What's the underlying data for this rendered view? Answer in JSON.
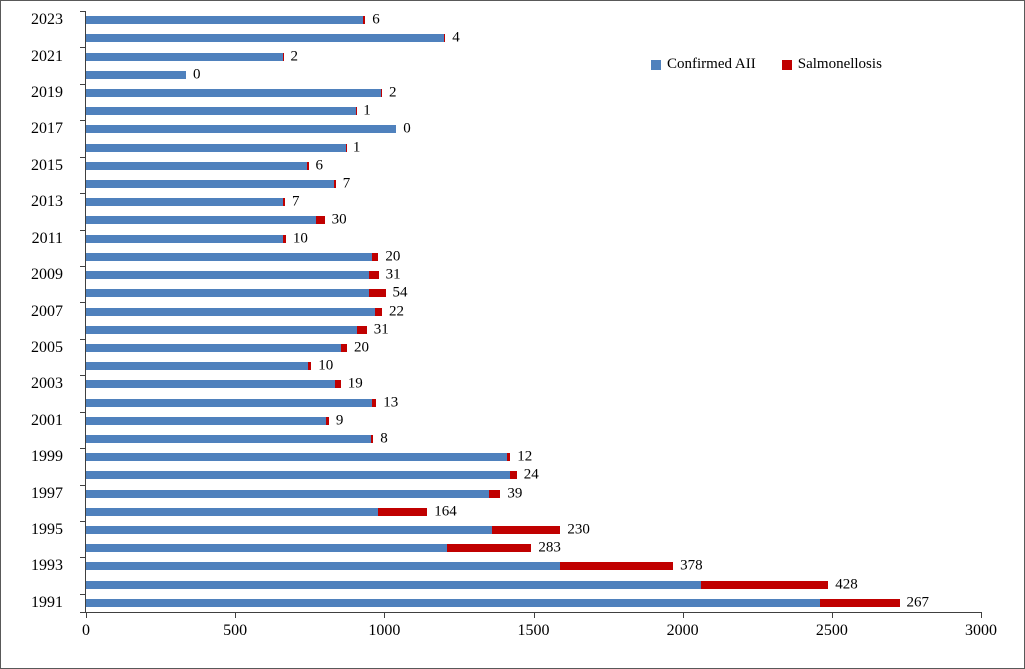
{
  "chart_data": {
    "type": "bar",
    "orientation": "horizontal",
    "stacked": true,
    "title": "",
    "xlabel": "",
    "ylabel": "",
    "xlim": [
      0,
      3000
    ],
    "x_ticks": [
      0,
      500,
      1000,
      1500,
      2000,
      2500,
      3000
    ],
    "grid": false,
    "legend_position": "top-right",
    "categories": [
      "1991",
      "1992",
      "1993",
      "1994",
      "1995",
      "1996",
      "1997",
      "1998",
      "1999",
      "2000",
      "2001",
      "2002",
      "2003",
      "2004",
      "2005",
      "2006",
      "2007",
      "2008",
      "2009",
      "2010",
      "2011",
      "2012",
      "2013",
      "2014",
      "2015",
      "2016",
      "2017",
      "2018",
      "2019",
      "2020",
      "2021",
      "2022",
      "2023"
    ],
    "y_axis_labeled_categories": [
      "1991",
      "1993",
      "1995",
      "1997",
      "1999",
      "2001",
      "2003",
      "2005",
      "2007",
      "2009",
      "2011",
      "2013",
      "2015",
      "2017",
      "2019",
      "2021",
      "2023"
    ],
    "series": [
      {
        "name": "Confirmed AII",
        "color": "#4F81BD",
        "values": [
          2460,
          2060,
          1590,
          1210,
          1360,
          980,
          1350,
          1420,
          1410,
          955,
          805,
          960,
          835,
          745,
          855,
          910,
          970,
          950,
          950,
          960,
          660,
          770,
          660,
          830,
          740,
          870,
          1040,
          905,
          990,
          335,
          660,
          1200,
          930
        ]
      },
      {
        "name": "Salmonellosis",
        "color": "#C00000",
        "values": [
          267,
          428,
          378,
          283,
          230,
          164,
          39,
          24,
          12,
          8,
          9,
          13,
          19,
          10,
          20,
          31,
          22,
          54,
          31,
          20,
          10,
          30,
          7,
          7,
          6,
          1,
          0,
          1,
          2,
          0,
          2,
          4,
          6
        ],
        "data_labels_shown": true
      }
    ],
    "data_labels": {
      "series": "Salmonellosis",
      "position": "outside-end"
    }
  },
  "legend": {
    "items": [
      {
        "label": "Confirmed AII",
        "color": "#4F81BD"
      },
      {
        "label": "Salmonellosis",
        "color": "#C00000"
      }
    ]
  }
}
